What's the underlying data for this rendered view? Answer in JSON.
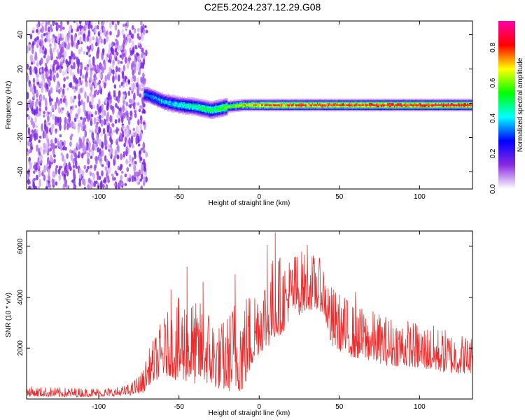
{
  "title": "C2E5.2024.237.12.29.G08",
  "colors": {
    "snr_line": "#ee2a2a",
    "frame": "#000000"
  },
  "chart_data": [
    {
      "type": "heatmap",
      "xlabel": "Height of straight line (km)",
      "ylabel": "Frequency (Hz)",
      "xlim": [
        -145,
        133
      ],
      "ylim": [
        -50,
        48
      ],
      "xticks": [
        -100,
        -50,
        0,
        50,
        100
      ],
      "yticks": [
        -40,
        -20,
        0,
        20,
        40
      ],
      "colorbar": {
        "label": "Normalized spectral amplitude",
        "range": [
          0,
          0.95
        ],
        "ticks": [
          0.0,
          0.2,
          0.4,
          0.6,
          0.8
        ],
        "tick_labels": [
          "0.0",
          "0.2",
          "0.4",
          "0.6",
          "0.8"
        ],
        "colormap": [
          "#ffffff",
          "#8a2be2",
          "#0000ff",
          "#00ffff",
          "#00ff00",
          "#ffff00",
          "#ff0000",
          "#ff00aa"
        ]
      },
      "features": [
        {
          "description": "scattered purple noise",
          "x_range": [
            -145,
            -70
          ],
          "amplitude": 0.1
        },
        {
          "description": "signal ridge",
          "x": [
            -70,
            -60,
            -50,
            -40,
            -30,
            -20,
            -10,
            0,
            25,
            50,
            75,
            100,
            133
          ],
          "y": [
            5,
            1,
            -1,
            -2,
            -4,
            -2,
            -1,
            -1,
            -1,
            -1,
            -1,
            -1,
            -1
          ],
          "amplitude": [
            0.35,
            0.4,
            0.45,
            0.5,
            0.55,
            0.6,
            0.7,
            0.8,
            0.85,
            0.85,
            0.9,
            0.9,
            0.9
          ]
        }
      ]
    },
    {
      "type": "line",
      "xlabel": "Height of straight line (km)",
      "ylabel": "SNR (10 * v/v)",
      "xlim": [
        -145,
        133
      ],
      "ylim": [
        0,
        6600
      ],
      "xticks": [
        -100,
        -50,
        0,
        50,
        100
      ],
      "yticks": [
        2000,
        4000,
        6000
      ],
      "series": [
        {
          "color": "#ee2a2a",
          "envelope_x": [
            -145,
            -120,
            -90,
            -80,
            -72,
            -70,
            -65,
            -60,
            -55,
            -50,
            -45,
            -40,
            -35,
            -30,
            -25,
            -20,
            -15,
            -10,
            -5,
            0,
            5,
            10,
            15,
            20,
            25,
            30,
            35,
            40,
            45,
            50,
            55,
            60,
            70,
            80,
            90,
            100,
            110,
            120,
            133
          ],
          "envelope_low": [
            100,
            80,
            100,
            150,
            250,
            500,
            700,
            900,
            900,
            600,
            700,
            600,
            700,
            500,
            400,
            300,
            300,
            300,
            1200,
            1800,
            2000,
            2400,
            2600,
            3300,
            3300,
            3500,
            3500,
            3400,
            2000,
            1900,
            1700,
            1600,
            1500,
            1300,
            1300,
            1200,
            1100,
            1000,
            1000
          ],
          "envelope_high": [
            500,
            450,
            450,
            600,
            1200,
            1800,
            2500,
            3200,
            3600,
            4000,
            4300,
            3800,
            3900,
            3600,
            3000,
            3300,
            4200,
            4200,
            4400,
            4800,
            5200,
            5800,
            5600,
            5700,
            5900,
            5800,
            5700,
            5400,
            4500,
            4200,
            4000,
            3700,
            3500,
            3300,
            3200,
            3000,
            2900,
            2700,
            2500
          ],
          "spikes": [
            {
              "x": -55,
              "y": 4300
            },
            {
              "x": -45,
              "y": 5200
            },
            {
              "x": -35,
              "y": 4600
            },
            {
              "x": -15,
              "y": 4900
            },
            {
              "x": 5,
              "y": 6050
            },
            {
              "x": 10,
              "y": 6550
            },
            {
              "x": 30,
              "y": 6050
            },
            {
              "x": 60,
              "y": 4200
            }
          ]
        }
      ]
    }
  ]
}
